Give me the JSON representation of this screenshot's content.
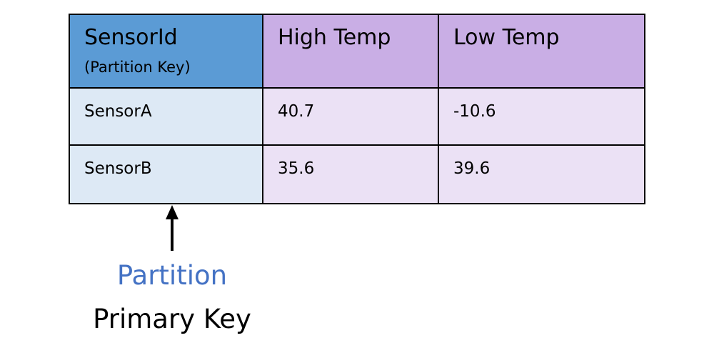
{
  "table": {
    "headers": {
      "key_title": "SensorId",
      "key_subtitle": "(Partition Key)",
      "col2": "High Temp",
      "col3": "Low Temp"
    },
    "rows": [
      [
        "SensorA",
        "40.7",
        "-10.6"
      ],
      [
        "SensorB",
        "35.6",
        "39.6"
      ]
    ]
  },
  "annotation": {
    "partition_label": "Partition",
    "primary_key_label": "Primary Key"
  },
  "colors": {
    "key_header_bg": "#5b9bd5",
    "attr_header_bg": "#c9aee5",
    "key_cell_bg": "#dde9f5",
    "attr_cell_bg": "#ebe1f5",
    "partition_text": "#4472c4"
  }
}
